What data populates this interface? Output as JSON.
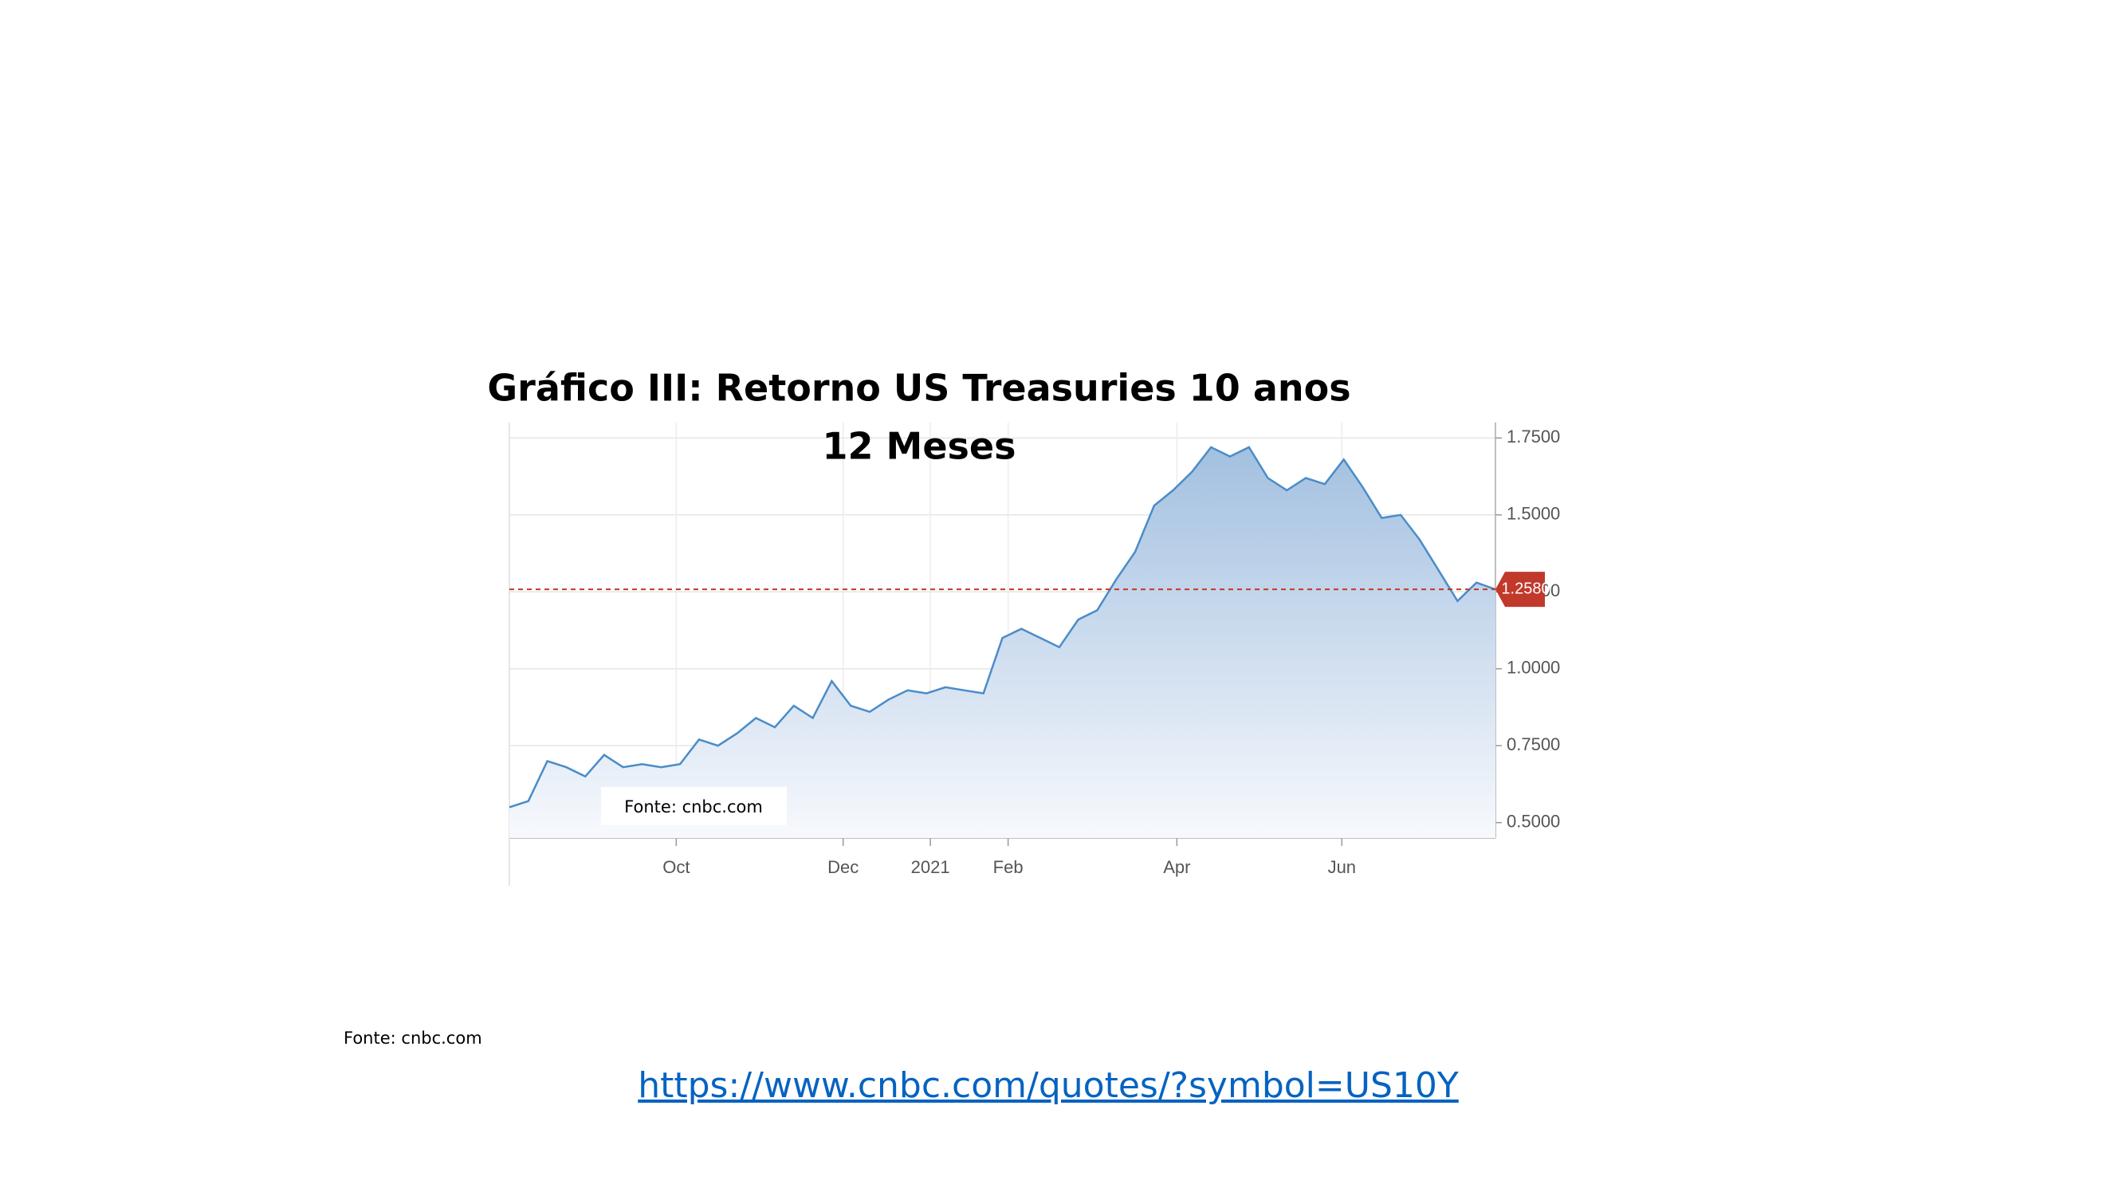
{
  "chart_data": {
    "type": "area",
    "title": "Gráfico III: Retorno US Treasuries 10 anos",
    "subtitle": "12 Meses",
    "source_note": "Fonte: cnbc.com",
    "series": [
      {
        "name": "US10Y",
        "color": "#4a8cc8",
        "values": [
          0.55,
          0.57,
          0.7,
          0.68,
          0.65,
          0.72,
          0.68,
          0.69,
          0.68,
          0.69,
          0.77,
          0.75,
          0.79,
          0.84,
          0.81,
          0.88,
          0.84,
          0.96,
          0.88,
          0.86,
          0.9,
          0.93,
          0.92,
          0.94,
          0.93,
          0.92,
          1.1,
          1.13,
          1.1,
          1.07,
          1.16,
          1.19,
          1.29,
          1.38,
          1.53,
          1.58,
          1.64,
          1.72,
          1.69,
          1.72,
          1.62,
          1.58,
          1.62,
          1.6,
          1.68,
          1.59,
          1.49,
          1.5,
          1.42,
          1.32,
          1.22,
          1.28,
          1.258
        ]
      }
    ],
    "xlim": [
      0,
      52
    ],
    "xticks": [
      {
        "value": 8.8,
        "label": "Oct"
      },
      {
        "value": 17.6,
        "label": "Dec"
      },
      {
        "value": 22.2,
        "label": "2021"
      },
      {
        "value": 26.3,
        "label": "Feb"
      },
      {
        "value": 35.2,
        "label": "Apr"
      },
      {
        "value": 43.9,
        "label": "Jun"
      }
    ],
    "ylim": [
      0.45,
      1.8
    ],
    "yticks": [
      {
        "value": 0.5,
        "label": "0.5000"
      },
      {
        "value": 0.75,
        "label": "0.7500"
      },
      {
        "value": 1.0,
        "label": "1.0000"
      },
      {
        "value": 1.25,
        "label": "1.2500"
      },
      {
        "value": 1.5,
        "label": "1.5000"
      },
      {
        "value": 1.75,
        "label": "1.7500"
      }
    ],
    "last_value": {
      "value": 1.258,
      "label": "1.2580"
    },
    "last_value_color": "#c0392b",
    "grid": true
  },
  "footer": {
    "source": "Fonte: cnbc.com",
    "link": "https://www.cnbc.com/quotes/?symbol=US10Y"
  }
}
